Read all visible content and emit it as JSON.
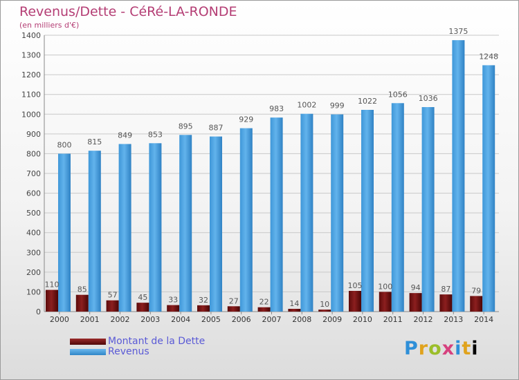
{
  "header": {
    "title": "Revenus/Dette - CéRé-LA-RONDE",
    "subtitle": "(en milliers d'€)"
  },
  "legend": {
    "items": [
      {
        "label": "Montant de la Dette",
        "color": "#7a1414"
      },
      {
        "label": "Revenus",
        "color": "#4ba3e3"
      }
    ]
  },
  "brand": {
    "logo_letters": [
      "P",
      "r",
      "o",
      "x",
      "i",
      "t",
      "i"
    ]
  },
  "chart_data": {
    "type": "bar",
    "title": "Revenus/Dette - CéRé-LA-RONDE",
    "subtitle": "(en milliers d'€)",
    "xlabel": "",
    "ylabel": "",
    "ylim": [
      0,
      1400
    ],
    "yticks": [
      0,
      100,
      200,
      300,
      400,
      500,
      600,
      700,
      800,
      900,
      1000,
      1100,
      1200,
      1300,
      1400
    ],
    "grid": true,
    "legend_position": "bottom-left",
    "categories": [
      "2000",
      "2001",
      "2002",
      "2003",
      "2004",
      "2005",
      "2006",
      "2007",
      "2008",
      "2009",
      "2010",
      "2011",
      "2012",
      "2013",
      "2014"
    ],
    "series": [
      {
        "name": "Montant de la Dette",
        "color": "#7a1414",
        "values": [
          110,
          85,
          57,
          45,
          33,
          32,
          27,
          22,
          14,
          10,
          105,
          100,
          94,
          87,
          79
        ]
      },
      {
        "name": "Revenus",
        "color": "#4ba3e3",
        "values": [
          800,
          815,
          849,
          853,
          895,
          887,
          929,
          983,
          1002,
          999,
          1022,
          1056,
          1036,
          1375,
          1248
        ]
      }
    ]
  }
}
